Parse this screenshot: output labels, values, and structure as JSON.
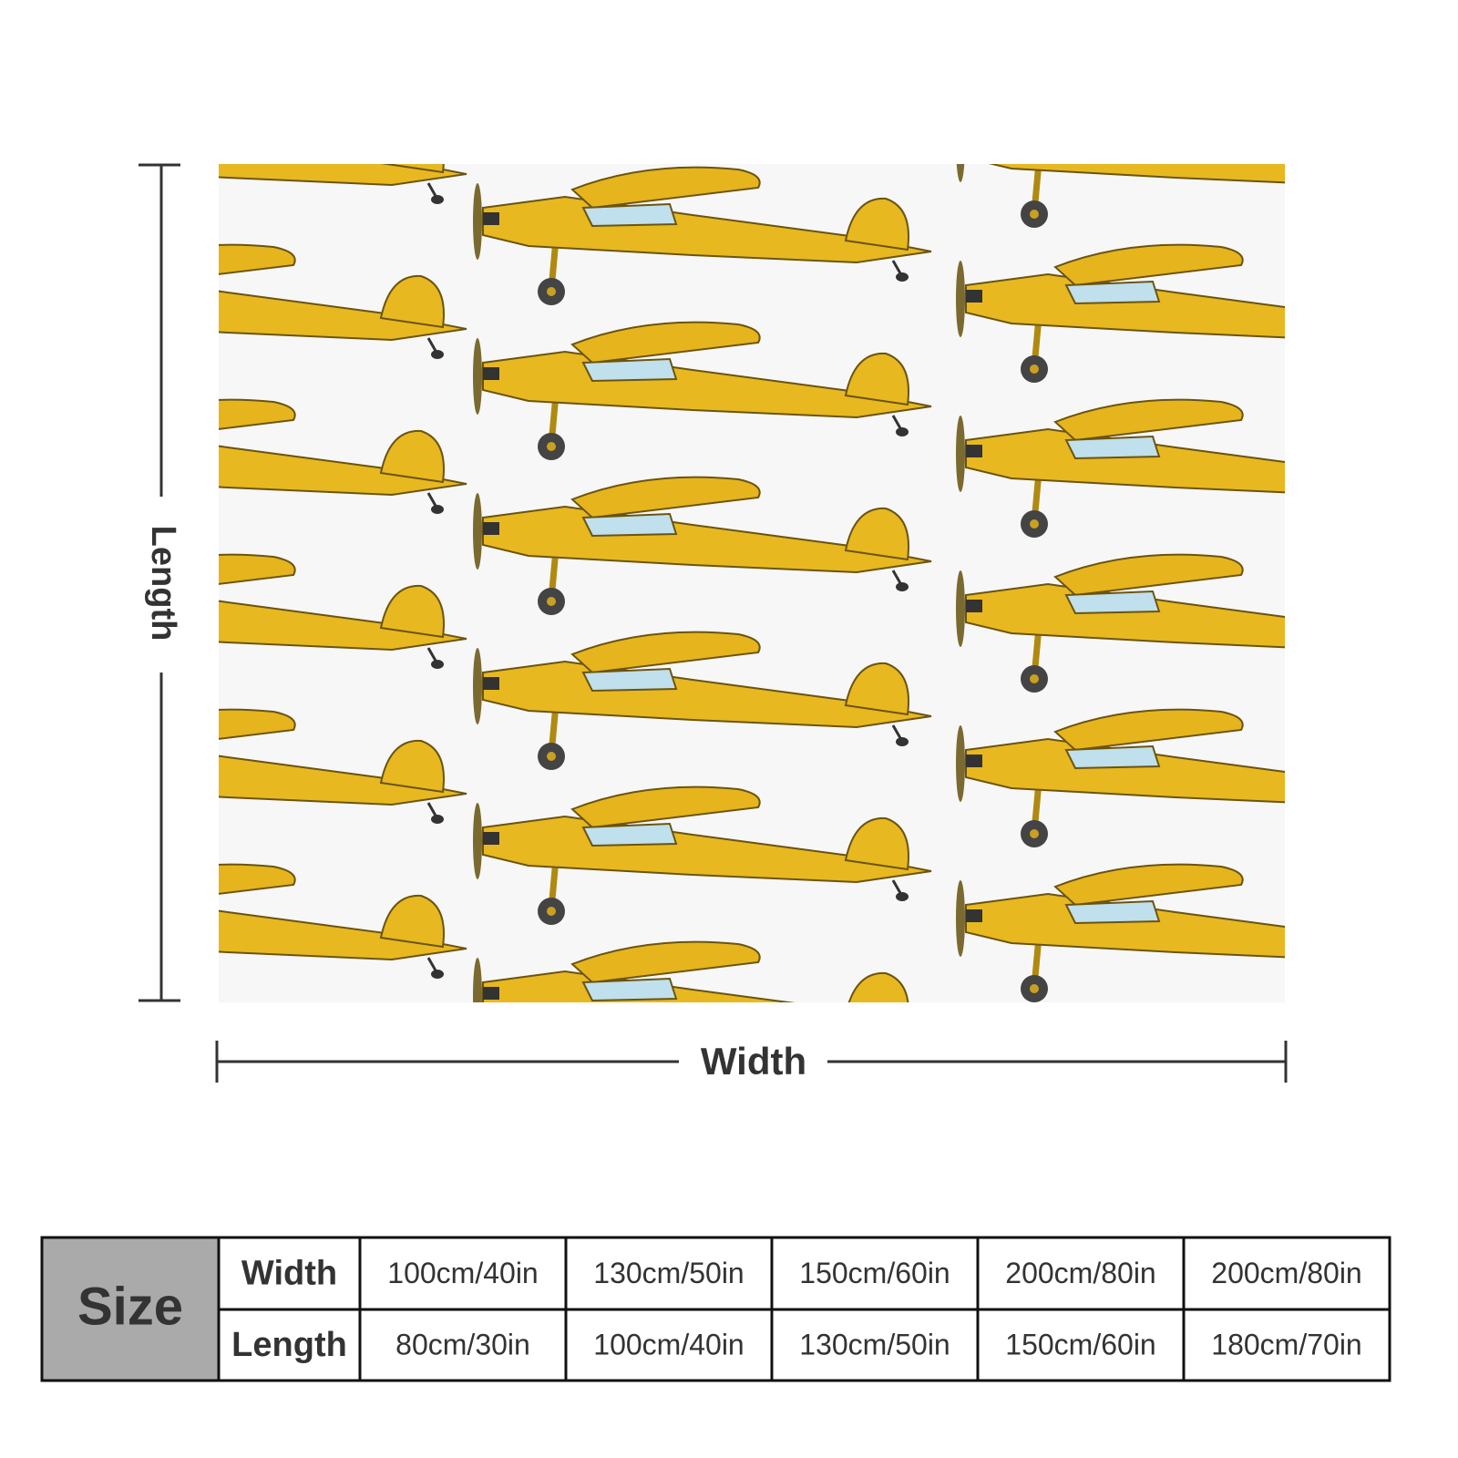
{
  "dimensions": {
    "length_label": "Length",
    "width_label": "Width"
  },
  "size_table": {
    "header": "Size",
    "rows": [
      {
        "label": "Width",
        "values": [
          "100cm/40in",
          "130cm/50in",
          "150cm/60in",
          "200cm/80in",
          "200cm/80in"
        ]
      },
      {
        "label": "Length",
        "values": [
          "80cm/30in",
          "100cm/40in",
          "130cm/50in",
          "150cm/60in",
          "180cm/70in"
        ]
      }
    ]
  }
}
